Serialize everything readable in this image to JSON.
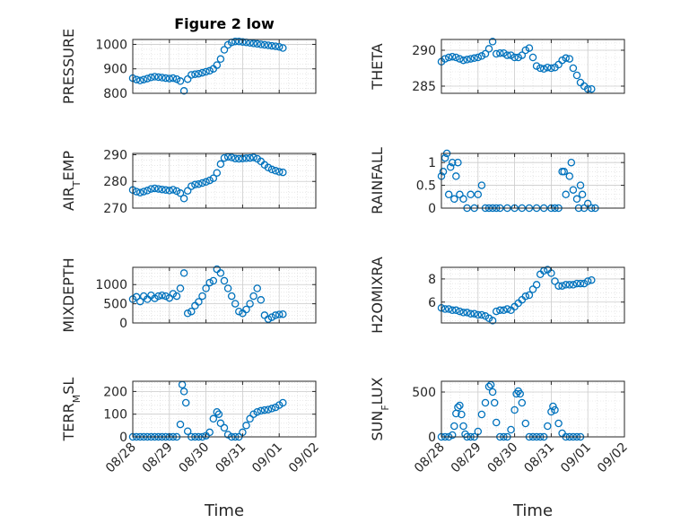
{
  "figure": {
    "title": "Figure 2 low",
    "marker_color": "#0072BD"
  },
  "chart_data": [
    {
      "type": "scatter",
      "id": "pressure",
      "title": "Figure 2 low",
      "ylabel": "PRESSURE",
      "xlabel": "",
      "ylim": [
        800,
        1020
      ],
      "yticks": [
        800,
        900,
        1000
      ],
      "xlim": [
        0,
        5
      ],
      "xtick_labels": [
        "08/28",
        "08/29",
        "08/30",
        "08/31",
        "09/01",
        "09/02"
      ],
      "grid": true,
      "x": [
        0.0,
        0.1,
        0.2,
        0.3,
        0.4,
        0.5,
        0.6,
        0.7,
        0.8,
        0.9,
        1.0,
        1.1,
        1.2,
        1.3,
        1.4,
        1.5,
        1.6,
        1.7,
        1.8,
        1.9,
        2.0,
        2.1,
        2.2,
        2.3,
        2.4,
        2.5,
        2.6,
        2.7,
        2.8,
        2.9,
        3.0,
        3.1,
        3.2,
        3.3,
        3.4,
        3.5,
        3.6,
        3.7,
        3.8,
        3.9,
        4.0,
        4.1
      ],
      "y": [
        862,
        856,
        852,
        856,
        860,
        865,
        868,
        866,
        864,
        862,
        860,
        862,
        858,
        850,
        810,
        858,
        875,
        878,
        880,
        884,
        888,
        892,
        900,
        915,
        940,
        978,
        998,
        1008,
        1012,
        1012,
        1010,
        1008,
        1006,
        1004,
        1002,
        1000,
        998,
        996,
        994,
        992,
        990,
        985
      ]
    },
    {
      "type": "scatter",
      "id": "theta",
      "title": "",
      "ylabel": "THETA",
      "xlabel": "",
      "ylim": [
        284,
        291.5
      ],
      "yticks": [
        285,
        290
      ],
      "xlim": [
        0,
        5
      ],
      "xtick_labels": [
        "08/28",
        "08/29",
        "08/30",
        "08/31",
        "09/01",
        "09/02"
      ],
      "grid": true,
      "x": [
        0.0,
        0.1,
        0.2,
        0.3,
        0.4,
        0.5,
        0.6,
        0.7,
        0.8,
        0.9,
        1.0,
        1.1,
        1.2,
        1.3,
        1.4,
        1.5,
        1.6,
        1.7,
        1.8,
        1.9,
        2.0,
        2.1,
        2.2,
        2.3,
        2.4,
        2.5,
        2.6,
        2.7,
        2.8,
        2.9,
        3.0,
        3.1,
        3.2,
        3.3,
        3.4,
        3.5,
        3.6,
        3.7,
        3.8,
        3.9,
        4.0,
        4.1
      ],
      "y": [
        288.4,
        288.8,
        289.0,
        289.1,
        289.0,
        288.8,
        288.6,
        288.7,
        288.8,
        288.9,
        289.0,
        289.2,
        289.5,
        290.2,
        291.2,
        289.5,
        289.6,
        289.6,
        289.3,
        289.3,
        289.0,
        289.0,
        289.3,
        290.0,
        290.3,
        289.0,
        287.8,
        287.5,
        287.4,
        287.6,
        287.5,
        287.6,
        288.0,
        288.6,
        288.9,
        288.8,
        287.5,
        286.5,
        285.5,
        285.0,
        284.6,
        284.6
      ]
    },
    {
      "type": "scatter",
      "id": "air-temp",
      "title": "",
      "ylabel": "AIR_TEMP",
      "xlabel": "",
      "ylim": [
        270,
        290.5
      ],
      "yticks": [
        270,
        280,
        290
      ],
      "xlim": [
        0,
        5
      ],
      "xtick_labels": [
        "08/28",
        "08/29",
        "08/30",
        "08/31",
        "09/01",
        "09/02"
      ],
      "grid": true,
      "x": [
        0.0,
        0.1,
        0.2,
        0.3,
        0.4,
        0.5,
        0.6,
        0.7,
        0.8,
        0.9,
        1.0,
        1.1,
        1.2,
        1.3,
        1.4,
        1.5,
        1.6,
        1.7,
        1.8,
        1.9,
        2.0,
        2.1,
        2.2,
        2.3,
        2.4,
        2.5,
        2.6,
        2.7,
        2.8,
        2.9,
        3.0,
        3.1,
        3.2,
        3.3,
        3.4,
        3.5,
        3.6,
        3.7,
        3.8,
        3.9,
        4.0,
        4.1
      ],
      "y": [
        276.8,
        276.2,
        275.8,
        276.2,
        276.6,
        277.2,
        277.4,
        277.2,
        277.0,
        276.8,
        276.6,
        276.9,
        276.4,
        275.6,
        273.6,
        276.5,
        278.2,
        278.8,
        279.0,
        279.4,
        279.8,
        280.4,
        281.2,
        283.2,
        286.5,
        288.8,
        289.2,
        289.0,
        288.6,
        288.5,
        288.6,
        288.7,
        288.8,
        289.0,
        288.5,
        287.5,
        286.2,
        285.2,
        284.5,
        284.0,
        283.6,
        283.4
      ]
    },
    {
      "type": "scatter",
      "id": "rainfall",
      "title": "",
      "ylabel": "RAINFALL",
      "xlabel": "",
      "ylim": [
        0,
        1.2
      ],
      "yticks": [
        0,
        0.5,
        1
      ],
      "xlim": [
        0,
        5
      ],
      "xtick_labels": [
        "08/28",
        "08/29",
        "08/30",
        "08/31",
        "09/01",
        "09/02"
      ],
      "grid": true,
      "x": [
        0.0,
        0.05,
        0.1,
        0.15,
        0.2,
        0.25,
        0.3,
        0.35,
        0.4,
        0.45,
        0.5,
        0.6,
        0.7,
        0.8,
        0.9,
        1.0,
        1.1,
        1.2,
        1.3,
        1.4,
        1.5,
        1.6,
        1.8,
        2.0,
        2.2,
        2.4,
        2.6,
        2.8,
        3.0,
        3.1,
        3.2,
        3.3,
        3.35,
        3.4,
        3.5,
        3.55,
        3.6,
        3.7,
        3.75,
        3.8,
        3.85,
        3.9,
        4.0,
        4.1,
        4.2
      ],
      "y": [
        0.7,
        0.8,
        1.1,
        1.2,
        0.3,
        0.9,
        1.0,
        0.2,
        0.7,
        1.0,
        0.3,
        0.2,
        0,
        0.3,
        0,
        0.3,
        0.5,
        0,
        0,
        0,
        0,
        0,
        0,
        0,
        0,
        0,
        0,
        0,
        0,
        0,
        0,
        0.8,
        0.8,
        0.3,
        0.7,
        1.0,
        0.4,
        0.2,
        0,
        0.5,
        0.3,
        0,
        0.1,
        0,
        0
      ]
    },
    {
      "type": "scatter",
      "id": "mixdepth",
      "title": "",
      "ylabel": "MIXDEPTH",
      "xlabel": "",
      "ylim": [
        0,
        1450
      ],
      "yticks": [
        0,
        500,
        1000
      ],
      "xlim": [
        0,
        5
      ],
      "xtick_labels": [
        "08/28",
        "08/29",
        "08/30",
        "08/31",
        "09/01",
        "09/02"
      ],
      "grid": true,
      "x": [
        0.0,
        0.1,
        0.2,
        0.3,
        0.4,
        0.5,
        0.6,
        0.7,
        0.8,
        0.9,
        1.0,
        1.1,
        1.2,
        1.3,
        1.4,
        1.5,
        1.6,
        1.7,
        1.8,
        1.9,
        2.0,
        2.1,
        2.2,
        2.3,
        2.4,
        2.5,
        2.6,
        2.7,
        2.8,
        2.9,
        3.0,
        3.1,
        3.2,
        3.3,
        3.4,
        3.5,
        3.6,
        3.7,
        3.8,
        3.9,
        4.0,
        4.1
      ],
      "y": [
        620,
        680,
        560,
        700,
        620,
        720,
        640,
        700,
        720,
        700,
        650,
        760,
        700,
        900,
        1300,
        250,
        300,
        450,
        550,
        700,
        900,
        1050,
        1100,
        1400,
        1300,
        1100,
        900,
        700,
        500,
        300,
        250,
        350,
        500,
        700,
        900,
        600,
        200,
        100,
        150,
        200,
        220,
        230
      ]
    },
    {
      "type": "scatter",
      "id": "h2omixra",
      "title": "",
      "ylabel": "H2OMIXRA",
      "xlabel": "",
      "ylim": [
        4.2,
        9
      ],
      "yticks": [
        6,
        8
      ],
      "xlim": [
        0,
        5
      ],
      "xtick_labels": [
        "08/28",
        "08/29",
        "08/30",
        "08/31",
        "09/01",
        "09/02"
      ],
      "grid": true,
      "x": [
        0.0,
        0.1,
        0.2,
        0.3,
        0.4,
        0.5,
        0.6,
        0.7,
        0.8,
        0.9,
        1.0,
        1.1,
        1.2,
        1.3,
        1.4,
        1.5,
        1.6,
        1.7,
        1.8,
        1.9,
        2.0,
        2.1,
        2.2,
        2.3,
        2.4,
        2.5,
        2.6,
        2.7,
        2.8,
        2.9,
        3.0,
        3.1,
        3.2,
        3.3,
        3.4,
        3.5,
        3.6,
        3.7,
        3.8,
        3.9,
        4.0,
        4.1
      ],
      "y": [
        5.5,
        5.4,
        5.4,
        5.3,
        5.3,
        5.2,
        5.1,
        5.1,
        5.0,
        5.0,
        4.9,
        4.9,
        4.8,
        4.6,
        4.4,
        5.2,
        5.3,
        5.3,
        5.4,
        5.3,
        5.6,
        5.9,
        6.2,
        6.5,
        6.6,
        7.1,
        7.5,
        8.4,
        8.7,
        8.8,
        8.5,
        7.8,
        7.4,
        7.4,
        7.5,
        7.5,
        7.5,
        7.6,
        7.6,
        7.6,
        7.8,
        7.9
      ]
    },
    {
      "type": "scatter",
      "id": "terr-msl",
      "title": "",
      "ylabel": "TERR_MSL",
      "xlabel": "Time",
      "ylim": [
        0,
        245
      ],
      "yticks": [
        0,
        100,
        200
      ],
      "xlim": [
        0,
        5
      ],
      "xtick_labels": [
        "08/28",
        "08/29",
        "08/30",
        "08/31",
        "09/01",
        "09/02"
      ],
      "grid": true,
      "x": [
        0.0,
        0.1,
        0.2,
        0.3,
        0.4,
        0.5,
        0.6,
        0.7,
        0.8,
        0.9,
        1.0,
        1.1,
        1.2,
        1.3,
        1.35,
        1.4,
        1.45,
        1.5,
        1.6,
        1.7,
        1.8,
        1.9,
        2.0,
        2.1,
        2.2,
        2.3,
        2.35,
        2.4,
        2.5,
        2.6,
        2.7,
        2.8,
        2.9,
        3.0,
        3.1,
        3.2,
        3.3,
        3.4,
        3.5,
        3.6,
        3.7,
        3.8,
        3.9,
        4.0,
        4.1
      ],
      "y": [
        0,
        0,
        0,
        0,
        0,
        0,
        0,
        0,
        0,
        0,
        0,
        0,
        0,
        55,
        230,
        200,
        150,
        25,
        0,
        0,
        0,
        0,
        5,
        20,
        80,
        110,
        100,
        60,
        40,
        10,
        0,
        0,
        0,
        20,
        50,
        80,
        100,
        110,
        115,
        118,
        120,
        125,
        130,
        140,
        150
      ]
    },
    {
      "type": "scatter",
      "id": "sun-flux",
      "title": "",
      "ylabel": "SUN_FLUX",
      "xlabel": "Time",
      "ylim": [
        0,
        620
      ],
      "yticks": [
        0,
        500
      ],
      "xlim": [
        0,
        5
      ],
      "xtick_labels": [
        "08/28",
        "08/29",
        "08/30",
        "08/31",
        "09/01",
        "09/02"
      ],
      "grid": true,
      "x": [
        0.0,
        0.1,
        0.2,
        0.3,
        0.35,
        0.4,
        0.45,
        0.5,
        0.55,
        0.6,
        0.65,
        0.7,
        0.8,
        0.9,
        1.0,
        1.1,
        1.2,
        1.3,
        1.35,
        1.4,
        1.45,
        1.5,
        1.6,
        1.7,
        1.8,
        1.9,
        2.0,
        2.05,
        2.1,
        2.15,
        2.2,
        2.3,
        2.4,
        2.5,
        2.6,
        2.7,
        2.8,
        2.9,
        3.0,
        3.05,
        3.1,
        3.2,
        3.3,
        3.4,
        3.5,
        3.6,
        3.7,
        3.8
      ],
      "y": [
        0,
        0,
        0,
        20,
        120,
        260,
        330,
        350,
        250,
        120,
        30,
        0,
        0,
        0,
        60,
        250,
        380,
        560,
        580,
        500,
        380,
        160,
        0,
        0,
        0,
        80,
        300,
        480,
        510,
        480,
        380,
        150,
        0,
        0,
        0,
        0,
        0,
        120,
        280,
        340,
        300,
        150,
        40,
        0,
        0,
        0,
        0,
        0
      ]
    }
  ]
}
